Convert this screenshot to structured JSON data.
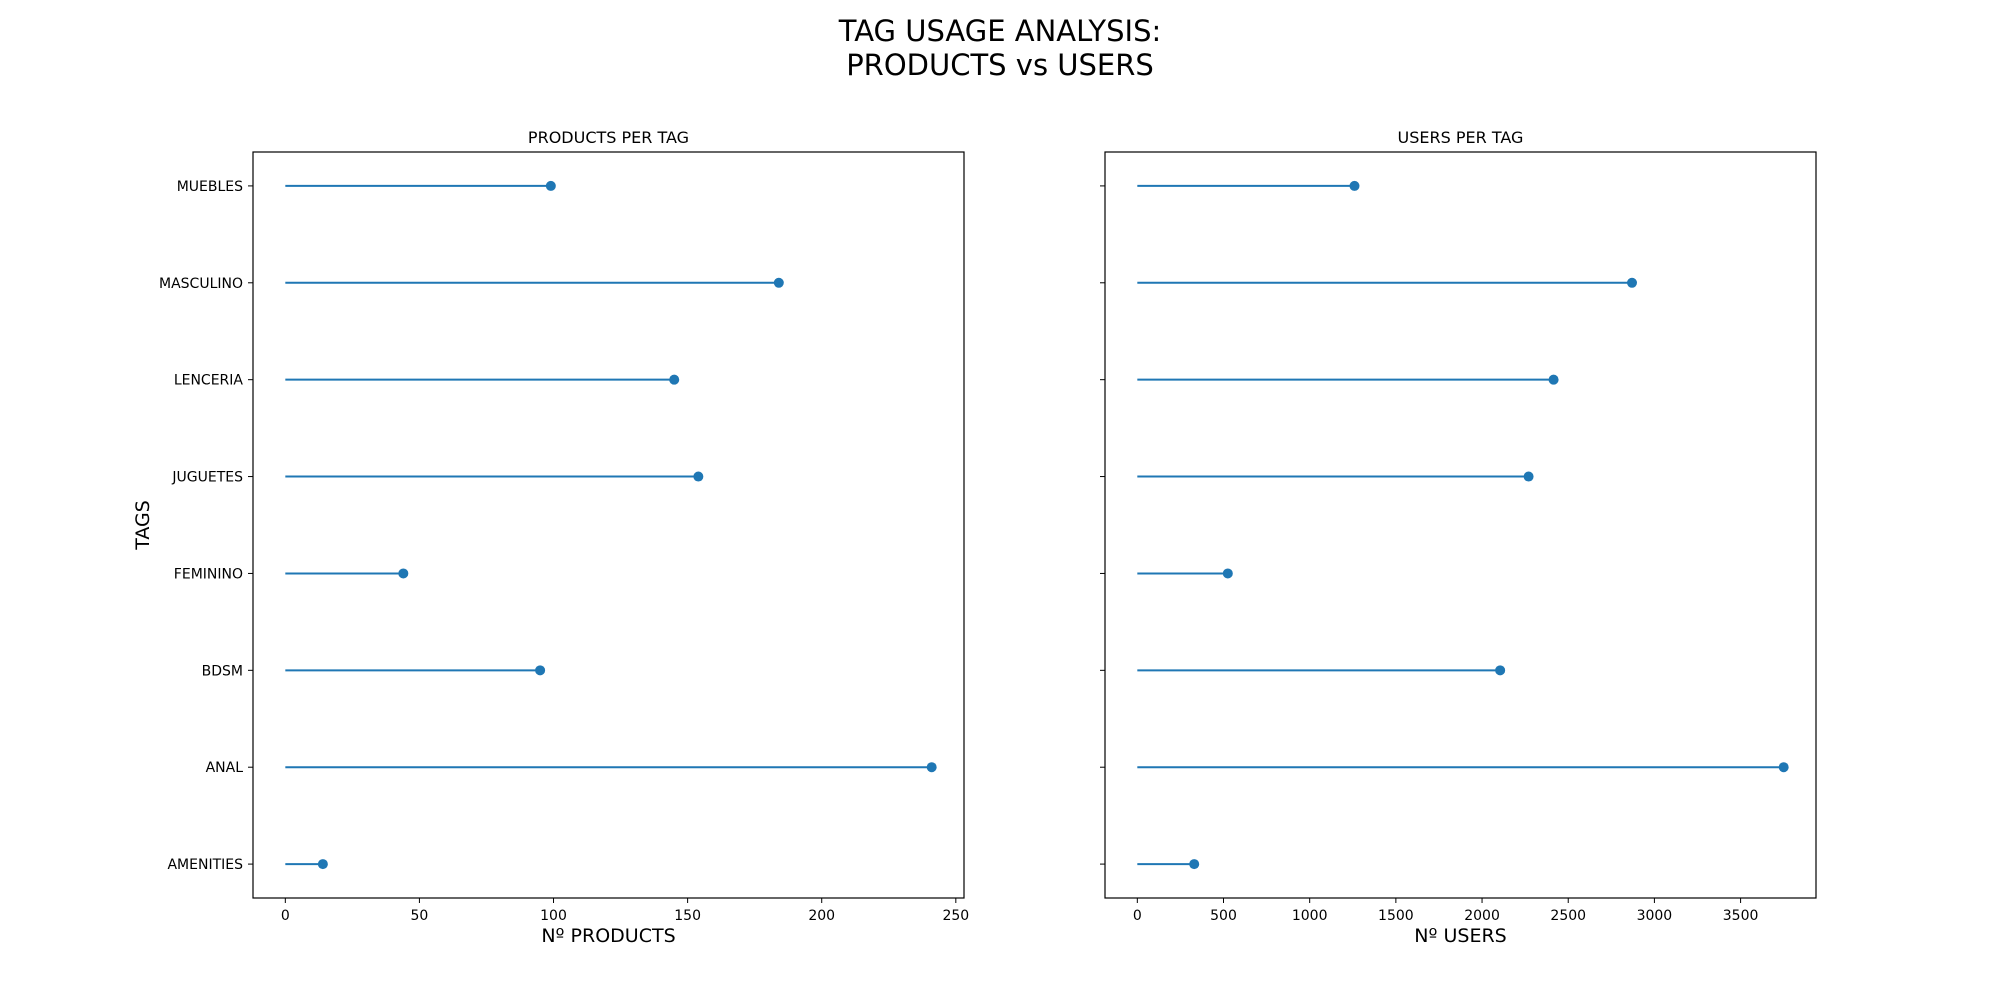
{
  "title_lines": [
    "TAG USAGE ANALYSIS:",
    "PRODUCTS vs USERS"
  ],
  "colors": {
    "series": "#1f77b4",
    "axes": "#000000"
  },
  "chart_data": [
    {
      "type": "lollipop",
      "title": "PRODUCTS PER TAG",
      "xlabel": "Nº PRODUCTS",
      "ylabel": "TAGS",
      "categories": [
        "AMENITIES",
        "ANAL",
        "BDSM",
        "FEMININO",
        "JUGUETES",
        "LENCERIA",
        "MASCULINO",
        "MUEBLES"
      ],
      "values": [
        14,
        241,
        95,
        44,
        154,
        145,
        184,
        99
      ],
      "xlim": [
        -12.05,
        253.05
      ],
      "xticks": [
        0,
        50,
        100,
        150,
        200,
        250
      ],
      "show_tick_labels": true,
      "grid": false
    },
    {
      "type": "lollipop",
      "title": "USERS PER TAG",
      "xlabel": "Nº USERS",
      "ylabel": "",
      "categories": [
        "AMENITIES",
        "ANAL",
        "BDSM",
        "FEMININO",
        "JUGUETES",
        "LENCERIA",
        "MASCULINO",
        "MUEBLES"
      ],
      "values": [
        330,
        3750,
        2105,
        525,
        2270,
        2415,
        2870,
        1260
      ],
      "xlim": [
        -187.5,
        3937.5
      ],
      "xticks": [
        0,
        500,
        1000,
        1500,
        2000,
        2500,
        3000,
        3500
      ],
      "show_tick_labels": false,
      "grid": false
    }
  ]
}
